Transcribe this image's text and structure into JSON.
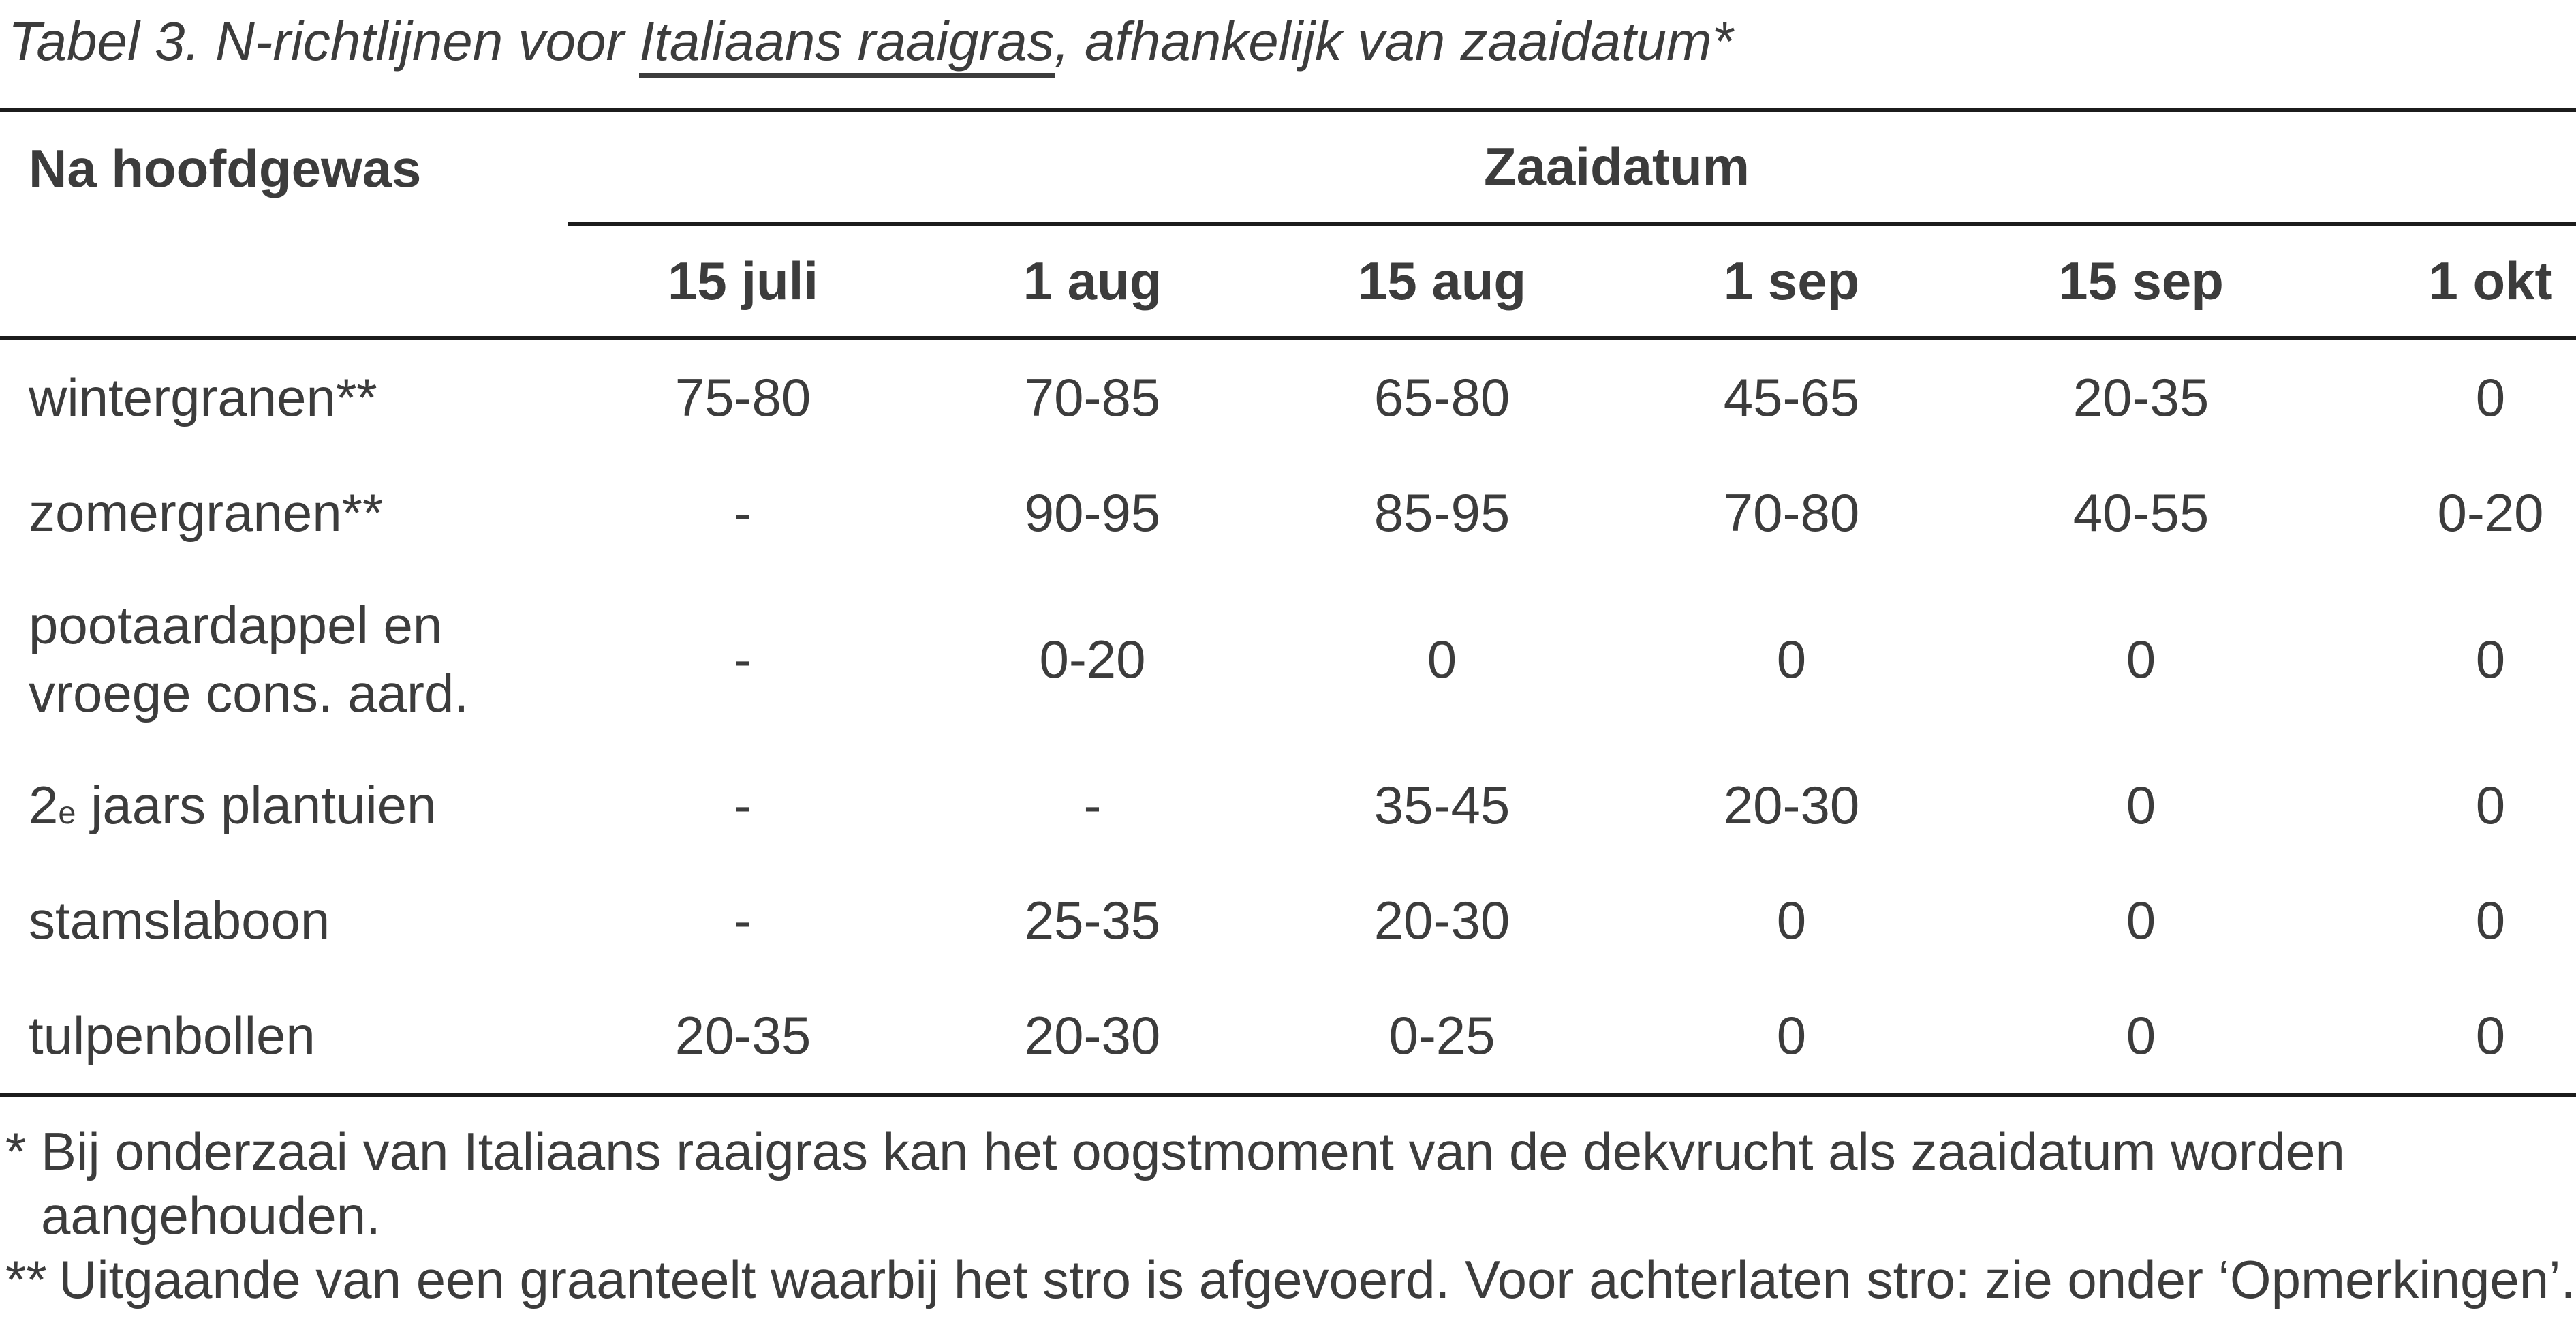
{
  "title": {
    "prefix": "Tabel 3. N-richtlijnen voor ",
    "underlined": "Italiaans raaigras",
    "suffix": ", afhankelijk van zaaidatum*"
  },
  "table": {
    "row_header": "Na hoofdgewas",
    "col_group_header": "Zaaidatum",
    "columns": [
      "15 juli",
      "1 aug",
      "15 aug",
      "1 sep",
      "15 sep",
      "1 okt"
    ],
    "rows": [
      {
        "label": "wintergranen**",
        "values": [
          "75-80",
          "70-85",
          "65-80",
          "45-65",
          "20-35",
          "0"
        ]
      },
      {
        "label": "zomergranen**",
        "values": [
          "-",
          "90-95",
          "85-95",
          "70-80",
          "40-55",
          "0-20"
        ]
      },
      {
        "label_line1": "pootaardappel en",
        "label_line2": "vroege cons. aard.",
        "values": [
          "-",
          "0-20",
          "0",
          "0",
          "0",
          "0"
        ]
      },
      {
        "label_main": "2",
        "label_sup": "e",
        "label_rest": " jaars plantuien",
        "values": [
          "-",
          "-",
          "35-45",
          "20-30",
          "0",
          "0"
        ]
      },
      {
        "label": "stamslaboon",
        "values": [
          "-",
          "25-35",
          "20-30",
          "0",
          "0",
          "0"
        ]
      },
      {
        "label": "tulpenbollen",
        "values": [
          "20-35",
          "20-30",
          "0-25",
          "0",
          "0",
          "0"
        ]
      }
    ]
  },
  "footnotes": {
    "note1_marker": "*",
    "note1_line1": "Bij onderzaai van Italiaans raaigras kan het oogstmoment van de dekvrucht als zaaidatum worden",
    "note1_line2": "aangehouden.",
    "note2_marker": "**",
    "note2_text": "Uitgaande van een graanteelt waarbij het stro is afgevoerd. Voor achterlaten stro: zie onder ‘Opmerkingen’."
  },
  "colors": {
    "text": "#3c3c3c",
    "rule": "#1c1c1c",
    "background": "#ffffff"
  }
}
